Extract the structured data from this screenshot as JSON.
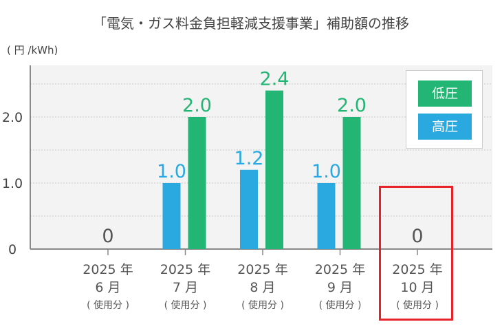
{
  "chart_data": {
    "type": "bar",
    "title": "「電気・ガス料金負担軽減支援事業」補助額の推移",
    "ylabel": "( 円 /kWh)",
    "xlabel": "",
    "ylim": [
      0,
      2.8
    ],
    "yticks": [
      0,
      1.0,
      2.0
    ],
    "ytick_labels": [
      "0",
      "1.0",
      "2.0"
    ],
    "categories": [
      {
        "year": "2025 年",
        "month": "6 月",
        "note": "( 使用分 )"
      },
      {
        "year": "2025 年",
        "month": "7 月",
        "note": "( 使用分 )"
      },
      {
        "year": "2025 年",
        "month": "8 月",
        "note": "( 使用分 )"
      },
      {
        "year": "2025 年",
        "month": "9 月",
        "note": "( 使用分 )"
      },
      {
        "year": "2025 年",
        "month": "10 月",
        "note": "( 使用分 )"
      }
    ],
    "series": [
      {
        "name": "高圧",
        "color": "#2aa9e0",
        "values": [
          0,
          1.0,
          1.2,
          1.0,
          0
        ],
        "labels": [
          "",
          "1.0",
          "1.2",
          "1.0",
          ""
        ]
      },
      {
        "name": "低圧",
        "color": "#22b573",
        "values": [
          0,
          2.0,
          2.4,
          2.0,
          0
        ],
        "labels": [
          "",
          "2.0",
          "2.4",
          "2.0",
          ""
        ]
      }
    ],
    "zero_labels": [
      "0",
      "",
      "",
      "",
      "0"
    ],
    "legend": "top-right",
    "legend_order": [
      "低圧",
      "高圧"
    ],
    "highlighted_category": 4,
    "grid": true
  }
}
